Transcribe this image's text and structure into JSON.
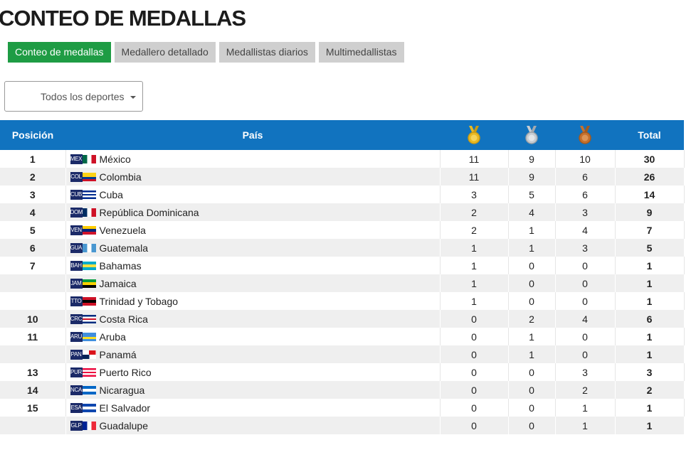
{
  "page": {
    "title": "CONTEO DE MEDALLAS"
  },
  "tabs": [
    {
      "label": "Conteo de medallas",
      "active": true
    },
    {
      "label": "Medallero detallado",
      "active": false
    },
    {
      "label": "Medallistas diarios",
      "active": false
    },
    {
      "label": "Multimedallistas",
      "active": false
    }
  ],
  "filter": {
    "selected": "Todos los deportes"
  },
  "table": {
    "headers": {
      "position": "Posición",
      "country": "País",
      "total": "Total"
    },
    "medal_icons": [
      "gold-medal-icon",
      "silver-medal-icon",
      "bronze-medal-icon"
    ],
    "medal_colors": {
      "gold": "#e8b923",
      "silver": "#b8bec4",
      "bronze": "#c4702d"
    },
    "rows": [
      {
        "rank": "1",
        "code": "MEX",
        "country": "México",
        "gold": "11",
        "silver": "9",
        "bronze": "10",
        "total": "30",
        "flag": [
          "#006847",
          "#ffffff",
          "#ce1126"
        ],
        "flag_dir": "v"
      },
      {
        "rank": "2",
        "code": "COL",
        "country": "Colombia",
        "gold": "11",
        "silver": "9",
        "bronze": "6",
        "total": "26",
        "flag": [
          "#fcd116",
          "#fcd116",
          "#003893",
          "#ce1126"
        ],
        "flag_dir": "h"
      },
      {
        "rank": "3",
        "code": "CUB",
        "country": "Cuba",
        "gold": "3",
        "silver": "5",
        "bronze": "6",
        "total": "14",
        "flag": [
          "#002a8f",
          "#ffffff",
          "#002a8f",
          "#ffffff",
          "#002a8f"
        ],
        "flag_dir": "h"
      },
      {
        "rank": "4",
        "code": "DOM",
        "country": "República Dominicana",
        "gold": "2",
        "silver": "4",
        "bronze": "3",
        "total": "9",
        "flag": [
          "#002d62",
          "#ffffff",
          "#ce1126"
        ],
        "flag_dir": "v"
      },
      {
        "rank": "5",
        "code": "VEN",
        "country": "Venezuela",
        "gold": "2",
        "silver": "1",
        "bronze": "4",
        "total": "7",
        "flag": [
          "#ffcc00",
          "#00247d",
          "#cf142b"
        ],
        "flag_dir": "h"
      },
      {
        "rank": "6",
        "code": "GUA",
        "country": "Guatemala",
        "gold": "1",
        "silver": "1",
        "bronze": "3",
        "total": "5",
        "flag": [
          "#4997d0",
          "#ffffff",
          "#4997d0"
        ],
        "flag_dir": "v"
      },
      {
        "rank": "7",
        "code": "BAH",
        "country": "Bahamas",
        "gold": "1",
        "silver": "0",
        "bronze": "0",
        "total": "1",
        "flag": [
          "#00abc9",
          "#fae042",
          "#00abc9"
        ],
        "flag_dir": "h"
      },
      {
        "rank": "",
        "code": "JAM",
        "country": "Jamaica",
        "gold": "1",
        "silver": "0",
        "bronze": "0",
        "total": "1",
        "flag": [
          "#009b3a",
          "#fed100",
          "#000000"
        ],
        "flag_dir": "h"
      },
      {
        "rank": "",
        "code": "TTO",
        "country": "Trinidad y Tobago",
        "gold": "1",
        "silver": "0",
        "bronze": "0",
        "total": "1",
        "flag": [
          "#ce1126",
          "#000000",
          "#ce1126"
        ],
        "flag_dir": "h"
      },
      {
        "rank": "10",
        "code": "CRC",
        "country": "Costa Rica",
        "gold": "0",
        "silver": "2",
        "bronze": "4",
        "total": "6",
        "flag": [
          "#002b7f",
          "#ffffff",
          "#ce1126",
          "#ffffff",
          "#002b7f"
        ],
        "flag_dir": "h"
      },
      {
        "rank": "11",
        "code": "ARU",
        "country": "Aruba",
        "gold": "0",
        "silver": "1",
        "bronze": "0",
        "total": "1",
        "flag": [
          "#418fde",
          "#418fde",
          "#fbe122",
          "#418fde"
        ],
        "flag_dir": "h"
      },
      {
        "rank": "",
        "code": "PAN",
        "country": "Panamá",
        "gold": "0",
        "silver": "1",
        "bronze": "0",
        "total": "1",
        "flag": [
          "#ffffff",
          "#da121a",
          "#072357",
          "#ffffff"
        ],
        "flag_dir": "q"
      },
      {
        "rank": "13",
        "code": "PUR",
        "country": "Puerto Rico",
        "gold": "0",
        "silver": "0",
        "bronze": "3",
        "total": "3",
        "flag": [
          "#ed0a3f",
          "#ffffff",
          "#ed0a3f",
          "#ffffff",
          "#ed0a3f"
        ],
        "flag_dir": "h"
      },
      {
        "rank": "14",
        "code": "NCA",
        "country": "Nicaragua",
        "gold": "0",
        "silver": "0",
        "bronze": "2",
        "total": "2",
        "flag": [
          "#0067c6",
          "#ffffff",
          "#0067c6"
        ],
        "flag_dir": "h"
      },
      {
        "rank": "15",
        "code": "ESA",
        "country": "El Salvador",
        "gold": "0",
        "silver": "0",
        "bronze": "1",
        "total": "1",
        "flag": [
          "#0f47af",
          "#ffffff",
          "#0f47af"
        ],
        "flag_dir": "h"
      },
      {
        "rank": "",
        "code": "GLP",
        "country": "Guadalupe",
        "gold": "0",
        "silver": "0",
        "bronze": "1",
        "total": "1",
        "flag": [
          "#002395",
          "#ffffff",
          "#ed2939"
        ],
        "flag_dir": "v"
      }
    ]
  }
}
